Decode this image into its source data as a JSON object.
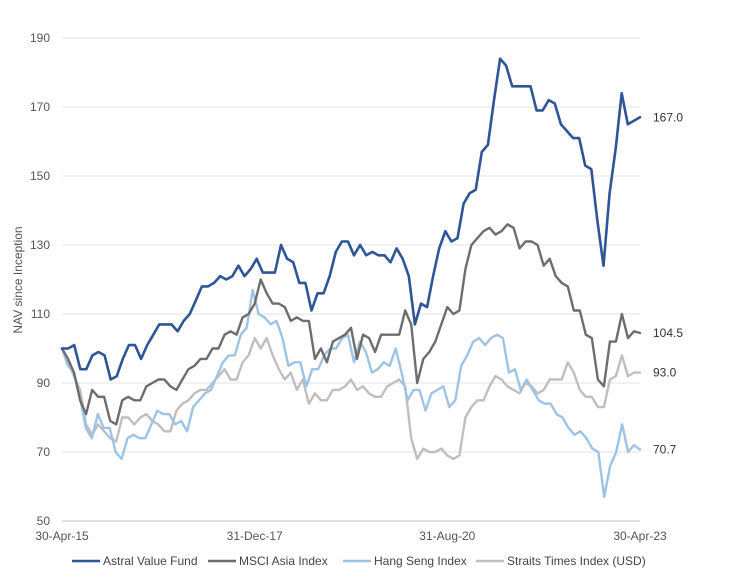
{
  "chart_data": {
    "type": "line",
    "title": "",
    "xlabel": "",
    "ylabel": "NAV since Inception",
    "ylim": [
      50,
      190
    ],
    "yticks": [
      50,
      70,
      90,
      110,
      130,
      150,
      170,
      190
    ],
    "x_tick_labels": [
      "30-Apr-15",
      "31-Dec-17",
      "31-Aug-20",
      "30-Apr-23"
    ],
    "grid": true,
    "legend_position": "bottom",
    "series": [
      {
        "name": "Astral Value Fund",
        "color": "#2e5597",
        "end_label": "167.0",
        "values": [
          100,
          100,
          101,
          94,
          94,
          98,
          99,
          98,
          91,
          92,
          97,
          101,
          101,
          97,
          101,
          104,
          107,
          107,
          107,
          105,
          108,
          110,
          114,
          118,
          118,
          119,
          121,
          120,
          121,
          124,
          121,
          123,
          126,
          122,
          122,
          122,
          130,
          126,
          125,
          119,
          119,
          111,
          116,
          116,
          121,
          128,
          131,
          131,
          127,
          130,
          127,
          128,
          127,
          127,
          125,
          129,
          126,
          121,
          107,
          113,
          112,
          121,
          129,
          134,
          131,
          132,
          142,
          145,
          146,
          157,
          159,
          172,
          184,
          182,
          176,
          176,
          176,
          176,
          169,
          169,
          172,
          171,
          165,
          163,
          161,
          161,
          153,
          152,
          137,
          124,
          145,
          158,
          174,
          165,
          166,
          167
        ]
      },
      {
        "name": "MSCI Asia Index",
        "color": "#6d6d6d",
        "end_label": "104.5",
        "values": [
          100,
          97,
          93,
          85,
          81,
          88,
          86,
          86,
          79,
          78,
          85,
          86,
          85,
          85,
          89,
          90,
          91,
          91,
          89,
          88,
          91,
          94,
          95,
          97,
          97,
          100,
          100,
          104,
          105,
          104,
          109,
          110,
          113,
          120,
          116,
          113,
          113,
          112,
          108,
          109,
          108,
          108,
          97,
          100,
          96,
          102,
          103,
          104,
          106,
          97,
          104,
          103,
          99,
          104,
          104,
          104,
          104,
          111,
          107,
          90,
          97,
          99,
          102,
          107,
          112,
          110,
          111,
          123,
          130,
          132,
          134,
          135,
          133,
          134,
          136,
          135,
          129,
          131,
          131,
          130,
          124,
          126,
          121,
          119,
          118,
          111,
          111,
          104,
          103,
          91,
          89,
          102,
          102,
          110,
          103,
          105,
          104.5
        ]
      },
      {
        "name": "Hang Seng Index",
        "color": "#9dc3e6",
        "end_label": "70.7",
        "values": [
          100,
          95,
          93,
          86,
          77,
          74,
          81,
          77,
          77,
          70,
          68,
          74,
          75,
          74,
          74,
          78,
          82,
          81,
          81,
          78,
          79,
          76,
          83,
          85,
          87,
          88,
          92,
          96,
          98,
          98,
          104,
          106,
          117,
          110,
          109,
          107,
          108,
          103,
          95,
          96,
          96,
          89,
          94,
          94,
          98,
          100,
          100,
          103,
          104,
          96,
          102,
          99,
          93,
          94,
          96,
          95,
          100,
          93,
          85,
          88,
          88,
          82,
          87,
          88,
          89,
          83,
          85,
          95,
          98,
          102,
          103,
          101,
          103,
          104,
          103,
          93,
          94,
          88,
          91,
          88,
          85,
          84,
          84,
          81,
          80,
          77,
          75,
          76,
          74,
          71,
          70,
          57,
          66,
          70,
          78,
          70,
          72,
          70.7
        ]
      },
      {
        "name": "Straits Times Index (USD)",
        "color": "#bfbfbf",
        "end_label": "93.0",
        "values": [
          100,
          96,
          92,
          88,
          78,
          75,
          78,
          76,
          74,
          73,
          80,
          80,
          78,
          80,
          81,
          79,
          78,
          76,
          76,
          82,
          84,
          85,
          87,
          88,
          88,
          90,
          92,
          94,
          91,
          91,
          96,
          98,
          103,
          100,
          103,
          98,
          94,
          91,
          93,
          88,
          91,
          84,
          87,
          85,
          85,
          88,
          88,
          89,
          91,
          88,
          89,
          87,
          86,
          86,
          89,
          90,
          91,
          89,
          74,
          68,
          71,
          70,
          70,
          71,
          69,
          68,
          69,
          80,
          83,
          85,
          85,
          89,
          92,
          91,
          89,
          88,
          87,
          90,
          89,
          87,
          88,
          91,
          91,
          91,
          96,
          93,
          88,
          86,
          86,
          83,
          83,
          91,
          92,
          98,
          92,
          93,
          93.0
        ]
      }
    ]
  }
}
